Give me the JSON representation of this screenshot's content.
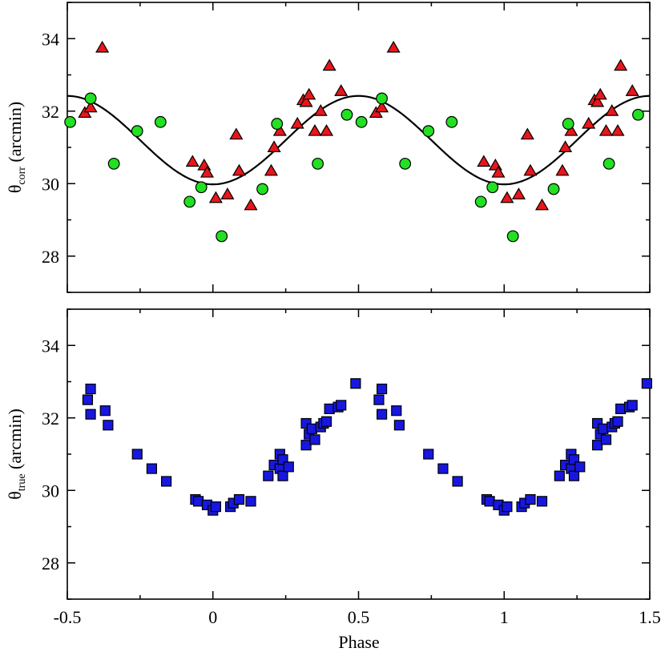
{
  "chart_data": [
    {
      "type": "scatter",
      "panel": "top",
      "ylabel": {
        "symbol": "θ",
        "sub": "corr",
        "rest": " (arcmin)"
      },
      "xlim": [
        -0.5,
        1.5
      ],
      "ylim": [
        27,
        35
      ],
      "x_ticks": [
        -0.5,
        0,
        0.5,
        1,
        1.5
      ],
      "y_ticks": [
        28,
        30,
        32,
        34
      ],
      "y_tick_labels": [
        "28",
        "30",
        "32",
        "34"
      ],
      "fit_curve": {
        "mean": 31.2,
        "amplitude": 1.22,
        "period": 1.0,
        "phase_of_minimum": 0.0
      },
      "series": [
        {
          "name": "triangles",
          "marker": "triangle",
          "color": "#e8161b",
          "points": [
            [
              -0.44,
              31.95
            ],
            [
              -0.42,
              32.1
            ],
            [
              -0.38,
              33.75
            ],
            [
              -0.07,
              30.6
            ],
            [
              -0.03,
              30.5
            ],
            [
              -0.02,
              30.3
            ],
            [
              0.01,
              29.6
            ],
            [
              0.05,
              29.7
            ],
            [
              0.08,
              31.35
            ],
            [
              0.09,
              30.35
            ],
            [
              0.13,
              29.4
            ],
            [
              0.2,
              30.35
            ],
            [
              0.21,
              31.0
            ],
            [
              0.23,
              31.45
            ],
            [
              0.29,
              31.65
            ],
            [
              0.31,
              32.3
            ],
            [
              0.32,
              32.25
            ],
            [
              0.33,
              32.45
            ],
            [
              0.35,
              31.45
            ],
            [
              0.37,
              32.0
            ],
            [
              0.39,
              31.45
            ],
            [
              0.4,
              33.25
            ],
            [
              0.44,
              32.55
            ],
            [
              0.56,
              31.95
            ],
            [
              0.58,
              32.1
            ],
            [
              0.62,
              33.75
            ],
            [
              0.93,
              30.6
            ],
            [
              0.97,
              30.5
            ],
            [
              0.98,
              30.3
            ],
            [
              1.01,
              29.6
            ],
            [
              1.05,
              29.7
            ],
            [
              1.08,
              31.35
            ],
            [
              1.09,
              30.35
            ],
            [
              1.13,
              29.4
            ],
            [
              1.2,
              30.35
            ],
            [
              1.21,
              31.0
            ],
            [
              1.23,
              31.45
            ],
            [
              1.29,
              31.65
            ],
            [
              1.31,
              32.3
            ],
            [
              1.32,
              32.25
            ],
            [
              1.33,
              32.45
            ],
            [
              1.35,
              31.45
            ],
            [
              1.37,
              32.0
            ],
            [
              1.39,
              31.45
            ],
            [
              1.4,
              33.25
            ],
            [
              1.44,
              32.55
            ]
          ]
        },
        {
          "name": "circles",
          "marker": "circle",
          "color": "#22e022",
          "points": [
            [
              -0.49,
              31.7
            ],
            [
              -0.42,
              32.35
            ],
            [
              -0.34,
              30.55
            ],
            [
              -0.26,
              31.45
            ],
            [
              -0.18,
              31.7
            ],
            [
              -0.08,
              29.5
            ],
            [
              -0.04,
              29.9
            ],
            [
              0.03,
              28.55
            ],
            [
              0.17,
              29.85
            ],
            [
              0.22,
              31.65
            ],
            [
              0.36,
              30.55
            ],
            [
              0.46,
              31.9
            ],
            [
              0.51,
              31.7
            ],
            [
              0.58,
              32.35
            ],
            [
              0.66,
              30.55
            ],
            [
              0.74,
              31.45
            ],
            [
              0.82,
              31.7
            ],
            [
              0.92,
              29.5
            ],
            [
              0.96,
              29.9
            ],
            [
              1.03,
              28.55
            ],
            [
              1.17,
              29.85
            ],
            [
              1.22,
              31.65
            ],
            [
              1.36,
              30.55
            ],
            [
              1.46,
              31.9
            ]
          ]
        }
      ]
    },
    {
      "type": "scatter",
      "panel": "bottom",
      "xlabel": "Phase",
      "ylabel": {
        "symbol": "θ",
        "sub": "true",
        "rest": " (arcmin)"
      },
      "xlim": [
        -0.5,
        1.5
      ],
      "ylim": [
        27,
        35
      ],
      "x_ticks": [
        -0.5,
        0,
        0.5,
        1,
        1.5
      ],
      "x_tick_labels": [
        "-0.5",
        "0",
        "0.5",
        "1",
        "1.5"
      ],
      "y_ticks": [
        28,
        30,
        32,
        34
      ],
      "y_tick_labels": [
        "28",
        "30",
        "32",
        "34"
      ],
      "series": [
        {
          "name": "squares",
          "marker": "square",
          "color": "#1717e0",
          "points": [
            [
              -0.43,
              32.5
            ],
            [
              -0.42,
              32.8
            ],
            [
              -0.42,
              32.1
            ],
            [
              -0.37,
              32.2
            ],
            [
              -0.36,
              31.8
            ],
            [
              -0.26,
              31.0
            ],
            [
              -0.21,
              30.6
            ],
            [
              -0.16,
              30.25
            ],
            [
              -0.06,
              29.75
            ],
            [
              -0.05,
              29.7
            ],
            [
              -0.02,
              29.6
            ],
            [
              0.0,
              29.45
            ],
            [
              0.01,
              29.55
            ],
            [
              0.06,
              29.55
            ],
            [
              0.07,
              29.65
            ],
            [
              0.09,
              29.75
            ],
            [
              0.13,
              29.7
            ],
            [
              0.19,
              30.4
            ],
            [
              0.21,
              30.7
            ],
            [
              0.23,
              31.0
            ],
            [
              0.23,
              30.6
            ],
            [
              0.24,
              30.85
            ],
            [
              0.24,
              30.4
            ],
            [
              0.26,
              30.65
            ],
            [
              0.32,
              31.85
            ],
            [
              0.32,
              31.25
            ],
            [
              0.33,
              31.55
            ],
            [
              0.34,
              31.7
            ],
            [
              0.35,
              31.4
            ],
            [
              0.37,
              31.75
            ],
            [
              0.38,
              31.85
            ],
            [
              0.39,
              31.9
            ],
            [
              0.4,
              32.25
            ],
            [
              0.43,
              32.3
            ],
            [
              0.44,
              32.35
            ],
            [
              0.49,
              32.95
            ],
            [
              0.57,
              32.5
            ],
            [
              0.58,
              32.8
            ],
            [
              0.58,
              32.1
            ],
            [
              0.63,
              32.2
            ],
            [
              0.64,
              31.8
            ],
            [
              0.74,
              31.0
            ],
            [
              0.79,
              30.6
            ],
            [
              0.84,
              30.25
            ],
            [
              0.94,
              29.75
            ],
            [
              0.95,
              29.7
            ],
            [
              0.98,
              29.6
            ],
            [
              1.0,
              29.45
            ],
            [
              1.01,
              29.55
            ],
            [
              1.06,
              29.55
            ],
            [
              1.07,
              29.65
            ],
            [
              1.09,
              29.75
            ],
            [
              1.13,
              29.7
            ],
            [
              1.19,
              30.4
            ],
            [
              1.21,
              30.7
            ],
            [
              1.23,
              31.0
            ],
            [
              1.23,
              30.6
            ],
            [
              1.24,
              30.85
            ],
            [
              1.24,
              30.4
            ],
            [
              1.26,
              30.65
            ],
            [
              1.32,
              31.85
            ],
            [
              1.32,
              31.25
            ],
            [
              1.33,
              31.55
            ],
            [
              1.34,
              31.7
            ],
            [
              1.35,
              31.4
            ],
            [
              1.37,
              31.75
            ],
            [
              1.38,
              31.85
            ],
            [
              1.39,
              31.9
            ],
            [
              1.4,
              32.25
            ],
            [
              1.43,
              32.3
            ],
            [
              1.44,
              32.35
            ],
            [
              1.49,
              32.95
            ]
          ]
        }
      ]
    }
  ]
}
